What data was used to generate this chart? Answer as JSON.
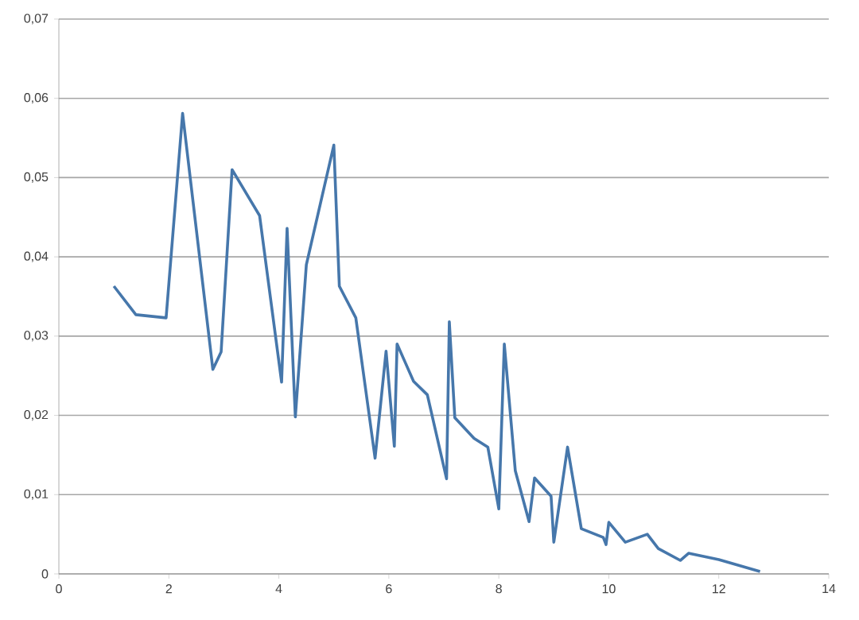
{
  "chart_data": {
    "type": "line",
    "color": "#4677ab",
    "grid": "y",
    "marker": "none",
    "line_style": "solid",
    "x": [
      1.0,
      1.4,
      1.95,
      2.25,
      2.8,
      2.95,
      3.15,
      3.65,
      4.05,
      4.15,
      4.3,
      4.5,
      5.0,
      5.1,
      5.4,
      5.75,
      5.95,
      6.1,
      6.15,
      6.45,
      6.7,
      7.05,
      7.1,
      7.2,
      7.55,
      7.8,
      8.0,
      8.1,
      8.3,
      8.55,
      8.65,
      8.95,
      9.0,
      9.25,
      9.5,
      9.9,
      9.95,
      10.0,
      10.3,
      10.7,
      10.9,
      11.3,
      11.45,
      12.0,
      12.75
    ],
    "values": [
      0.0363,
      0.0327,
      0.0323,
      0.0581,
      0.0258,
      0.028,
      0.051,
      0.0452,
      0.0242,
      0.0436,
      0.0198,
      0.039,
      0.0541,
      0.0363,
      0.0323,
      0.0146,
      0.0281,
      0.0161,
      0.029,
      0.0243,
      0.0226,
      0.012,
      0.0318,
      0.0197,
      0.0171,
      0.016,
      0.0082,
      0.029,
      0.013,
      0.0066,
      0.0121,
      0.0098,
      0.004,
      0.016,
      0.0057,
      0.0046,
      0.0037,
      0.0065,
      0.004,
      0.005,
      0.0032,
      0.0017,
      0.0026,
      0.0018,
      0.0003
    ],
    "xlim": [
      0,
      14
    ],
    "xticks": [
      0,
      2,
      4,
      6,
      8,
      10,
      12,
      14
    ],
    "ylim": [
      0,
      0.07
    ],
    "yticks": [
      {
        "value": 0,
        "label": "0"
      },
      {
        "value": 0.01,
        "label": "0,01"
      },
      {
        "value": 0.02,
        "label": "0,02"
      },
      {
        "value": 0.03,
        "label": "0,03"
      },
      {
        "value": 0.04,
        "label": "0,04"
      },
      {
        "value": 0.05,
        "label": "0,05"
      },
      {
        "value": 0.06,
        "label": "0,06"
      },
      {
        "value": 0.07,
        "label": "0,07"
      }
    ]
  }
}
